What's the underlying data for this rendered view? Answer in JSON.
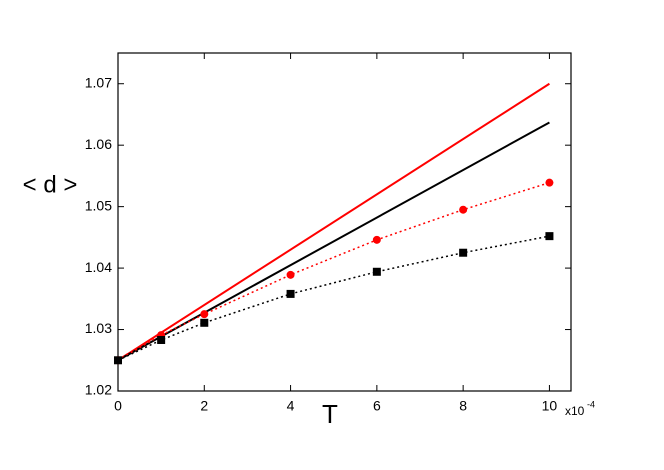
{
  "chart_data": {
    "type": "line",
    "xlabel": "T",
    "ylabel": "< d >",
    "x_multiplier": {
      "base": "x10",
      "exponent": "-4"
    },
    "xlim": [
      0,
      10.5
    ],
    "xticks": [
      0,
      2,
      4,
      6,
      8,
      10
    ],
    "ylim": [
      1.02,
      1.075
    ],
    "yticks": [
      1.02,
      1.03,
      1.04,
      1.05,
      1.06,
      1.07
    ],
    "series": [
      {
        "color": "#ff0000",
        "style": "solid",
        "marker": "none",
        "x": [
          0,
          10
        ],
        "values": [
          1.025,
          1.07
        ]
      },
      {
        "color": "#000000",
        "style": "solid",
        "marker": "none",
        "x": [
          0,
          10
        ],
        "values": [
          1.025,
          1.0637
        ]
      },
      {
        "color": "#ff0000",
        "style": "dotted",
        "marker": "circle",
        "x": [
          0,
          1,
          2,
          4,
          6,
          8,
          10
        ],
        "values": [
          1.025,
          1.0291,
          1.0325,
          1.0389,
          1.0446,
          1.0495,
          1.0539
        ]
      },
      {
        "color": "#000000",
        "style": "dotted",
        "marker": "square",
        "x": [
          0,
          1,
          2,
          4,
          6,
          8,
          10
        ],
        "values": [
          1.025,
          1.0283,
          1.0311,
          1.0358,
          1.0394,
          1.0425,
          1.0452
        ]
      }
    ]
  }
}
